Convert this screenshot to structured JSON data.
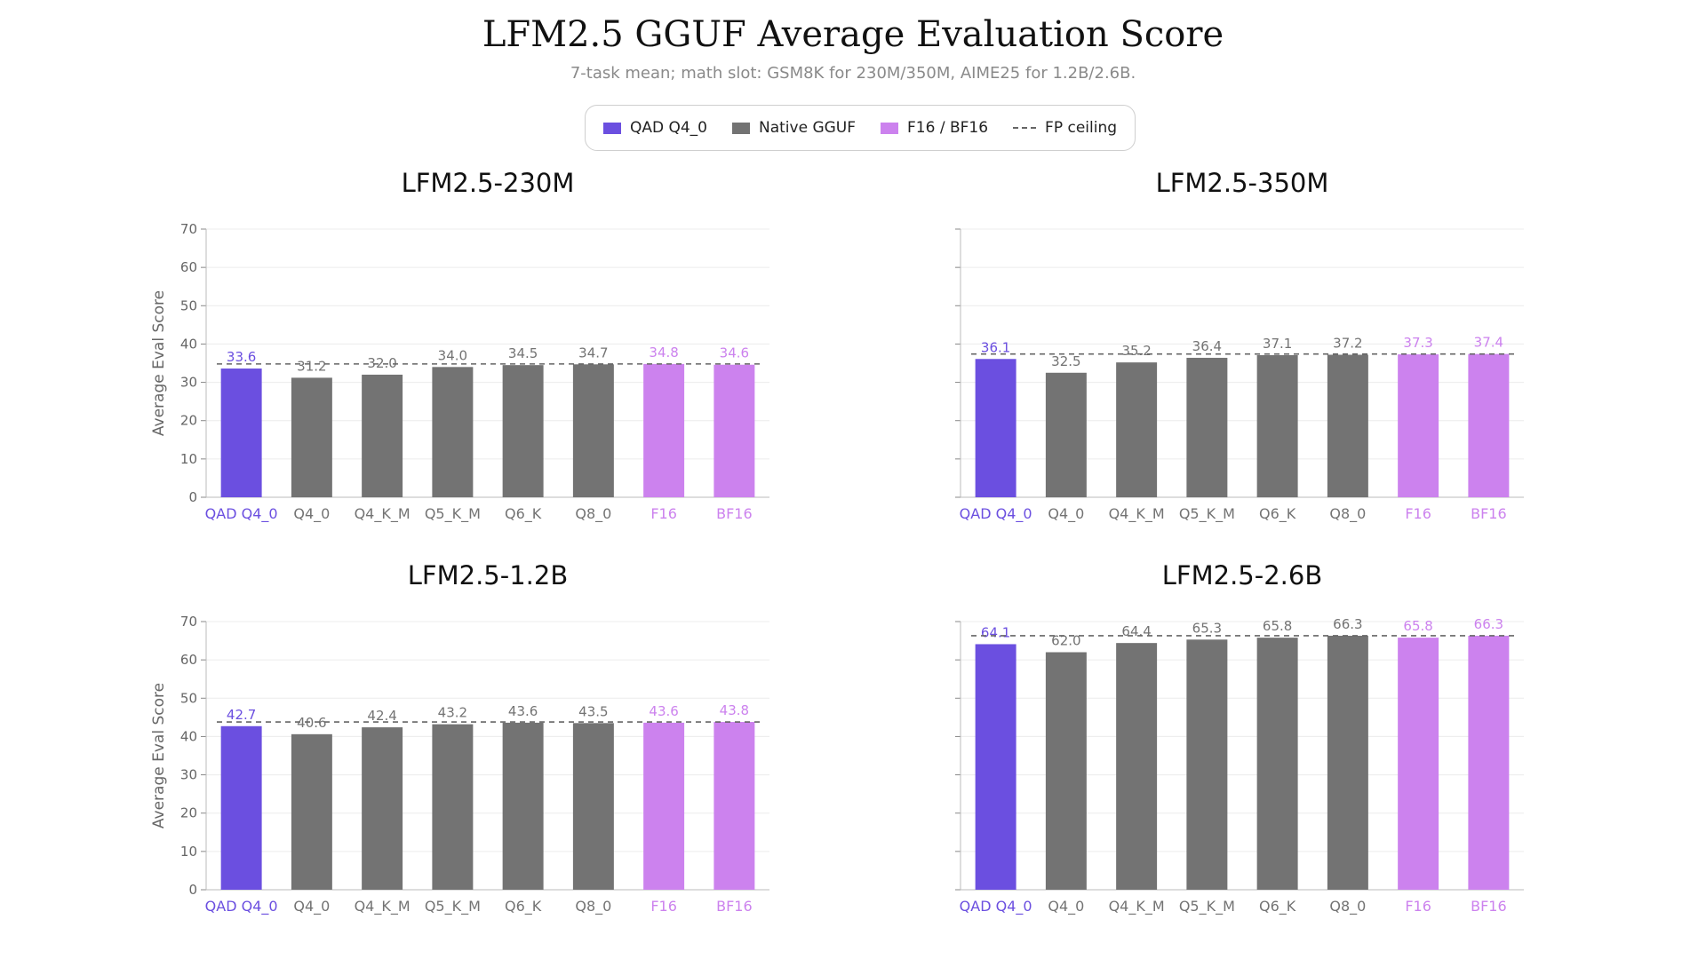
{
  "title": "LFM2.5 GGUF Average Evaluation Score",
  "subtitle": "7-task mean; math slot: GSM8K for 230M/350M, AIME25 for 1.2B/2.6B.",
  "colors": {
    "qad": "#6B4FE0",
    "native": "#737373",
    "fp": "#CC82EE",
    "ceiling": "#666666"
  },
  "legend": {
    "items": [
      {
        "label": "QAD Q4_0",
        "color": "#6B4FE0",
        "kind": "swatch"
      },
      {
        "label": "Native GGUF",
        "color": "#737373",
        "kind": "swatch"
      },
      {
        "label": "F16 / BF16",
        "color": "#CC82EE",
        "kind": "swatch"
      },
      {
        "label": "FP ceiling",
        "color": "#666666",
        "kind": "dash"
      }
    ]
  },
  "chart_data": [
    {
      "type": "bar",
      "title": "LFM2.5-230M",
      "ylabel": "Average Eval Score",
      "ylim": [
        0,
        70
      ],
      "yticks": [
        0,
        10,
        20,
        30,
        40,
        50,
        60,
        70
      ],
      "categories": [
        "QAD Q4_0",
        "Q4_0",
        "Q4_K_M",
        "Q5_K_M",
        "Q6_K",
        "Q8_0",
        "F16",
        "BF16"
      ],
      "groups": [
        "qad",
        "native",
        "native",
        "native",
        "native",
        "native",
        "fp",
        "fp"
      ],
      "values": [
        33.6,
        31.2,
        32.0,
        34.0,
        34.5,
        34.7,
        34.8,
        34.6
      ],
      "labels": [
        "33.6",
        "31.2",
        "32.0",
        "34.0",
        "34.5",
        "34.7",
        "34.8",
        "34.6"
      ],
      "ceiling": 34.8
    },
    {
      "type": "bar",
      "title": "LFM2.5-350M",
      "ylabel": "",
      "ylim": [
        0,
        70
      ],
      "yticks": [
        0,
        10,
        20,
        30,
        40,
        50,
        60,
        70
      ],
      "categories": [
        "QAD Q4_0",
        "Q4_0",
        "Q4_K_M",
        "Q5_K_M",
        "Q6_K",
        "Q8_0",
        "F16",
        "BF16"
      ],
      "groups": [
        "qad",
        "native",
        "native",
        "native",
        "native",
        "native",
        "fp",
        "fp"
      ],
      "values": [
        36.1,
        32.5,
        35.2,
        36.4,
        37.1,
        37.2,
        37.3,
        37.4
      ],
      "labels": [
        "36.1",
        "32.5",
        "35.2",
        "36.4",
        "37.1",
        "37.2",
        "37.3",
        "37.4"
      ],
      "ceiling": 37.4
    },
    {
      "type": "bar",
      "title": "LFM2.5-1.2B",
      "ylabel": "Average Eval Score",
      "ylim": [
        0,
        70
      ],
      "yticks": [
        0,
        10,
        20,
        30,
        40,
        50,
        60,
        70
      ],
      "categories": [
        "QAD Q4_0",
        "Q4_0",
        "Q4_K_M",
        "Q5_K_M",
        "Q6_K",
        "Q8_0",
        "F16",
        "BF16"
      ],
      "groups": [
        "qad",
        "native",
        "native",
        "native",
        "native",
        "native",
        "fp",
        "fp"
      ],
      "values": [
        42.7,
        40.6,
        42.4,
        43.2,
        43.6,
        43.5,
        43.6,
        43.8
      ],
      "labels": [
        "42.7",
        "40.6",
        "42.4",
        "43.2",
        "43.6",
        "43.5",
        "43.6",
        "43.8"
      ],
      "ceiling": 43.8
    },
    {
      "type": "bar",
      "title": "LFM2.5-2.6B",
      "ylabel": "",
      "ylim": [
        0,
        70
      ],
      "yticks": [
        0,
        10,
        20,
        30,
        40,
        50,
        60,
        70
      ],
      "categories": [
        "QAD Q4_0",
        "Q4_0",
        "Q4_K_M",
        "Q5_K_M",
        "Q6_K",
        "Q8_0",
        "F16",
        "BF16"
      ],
      "groups": [
        "qad",
        "native",
        "native",
        "native",
        "native",
        "native",
        "fp",
        "fp"
      ],
      "values": [
        64.1,
        62.0,
        64.4,
        65.3,
        65.8,
        66.3,
        65.8,
        66.3
      ],
      "labels": [
        "64.1",
        "62.0",
        "64.4",
        "65.3",
        "65.8",
        "66.3",
        "65.8",
        "66.3"
      ],
      "ceiling": 66.3
    }
  ]
}
